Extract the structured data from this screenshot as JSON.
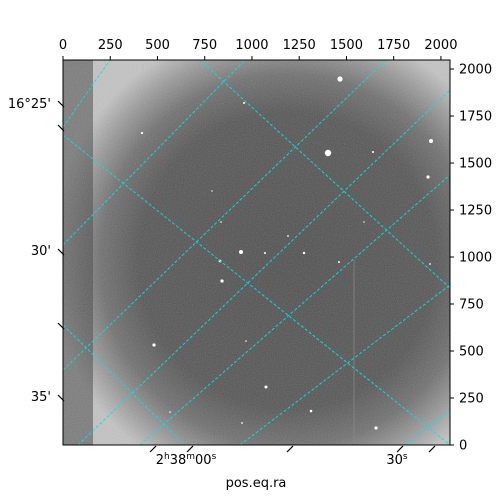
{
  "chart_data": {
    "type": "image",
    "title": "",
    "xlabel": "pos.eq.ra",
    "ylabel": "",
    "pixel_axes": {
      "x_range": [
        0,
        2048
      ],
      "y_range": [
        0,
        2048
      ],
      "x_ticks": [
        "0",
        "250",
        "500",
        "750",
        "1000",
        "1250",
        "1500",
        "1750",
        "2000"
      ],
      "y_ticks": [
        "0",
        "250",
        "500",
        "750",
        "1000",
        "1250",
        "1500",
        "1750",
        "2000"
      ]
    },
    "world_axes": {
      "ra_labels": [
        "2h38m00s",
        "30s"
      ],
      "dec_labels": [
        "16°25'",
        "30'",
        "35'"
      ]
    },
    "grid": true,
    "grid_color": "#00e5e5",
    "image_colormap": "grayscale"
  }
}
